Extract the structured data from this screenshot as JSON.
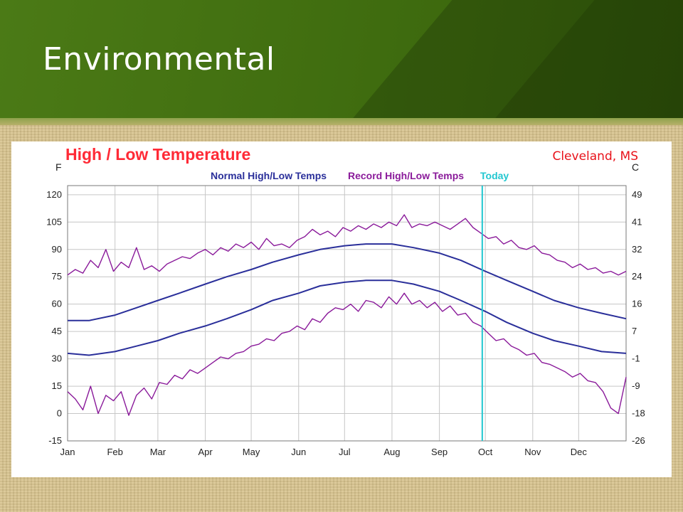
{
  "slide": {
    "title": "Environmental",
    "location_label": "Cleveland, MS"
  },
  "colors": {
    "chart_title": "#ff2a36",
    "normal": "#2a2f9a",
    "record": "#8a1a9a",
    "today": "#22c7d0",
    "grid": "#c6c6c6"
  },
  "chart_data": {
    "type": "line",
    "title": "High / Low Temperature",
    "left_unit": "F",
    "right_unit": "C",
    "legend": {
      "normal": "Normal High/Low Temps",
      "record": "Record High/Low Temps",
      "today": "Today"
    },
    "x_ticks": [
      "Jan",
      "Feb",
      "Mar",
      "Apr",
      "May",
      "Jun",
      "Jul",
      "Aug",
      "Sep",
      "Oct",
      "Nov",
      "Dec"
    ],
    "x_tick_days": [
      1,
      32,
      60,
      91,
      121,
      152,
      182,
      213,
      244,
      274,
      305,
      335
    ],
    "xlim": [
      1,
      366
    ],
    "ylim": [
      -15,
      125
    ],
    "y_ticks": [
      -15,
      0,
      15,
      30,
      45,
      60,
      75,
      90,
      105,
      120
    ],
    "y_ticks_c": [
      "-26",
      "-18",
      "-9",
      "-1",
      "7",
      "16",
      "24",
      "32",
      "41",
      "49"
    ],
    "today_day": 272,
    "series": [
      {
        "name": "Normal High/Low Temps",
        "role": "normal_high",
        "x": [
          1,
          15,
          32,
          46,
          60,
          74,
          91,
          105,
          121,
          135,
          152,
          166,
          182,
          196,
          213,
          227,
          244,
          258,
          274,
          288,
          305,
          319,
          335,
          350,
          366
        ],
        "values": [
          51,
          51,
          54,
          58,
          62,
          66,
          71,
          75,
          79,
          83,
          87,
          90,
          92,
          93,
          93,
          91,
          88,
          84,
          78,
          73,
          67,
          62,
          58,
          55,
          52
        ]
      },
      {
        "name": "Normal High/Low Temps",
        "role": "normal_low",
        "x": [
          1,
          15,
          32,
          46,
          60,
          74,
          91,
          105,
          121,
          135,
          152,
          166,
          182,
          196,
          213,
          227,
          244,
          258,
          274,
          288,
          305,
          319,
          335,
          350,
          366
        ],
        "values": [
          33,
          32,
          34,
          37,
          40,
          44,
          48,
          52,
          57,
          62,
          66,
          70,
          72,
          73,
          73,
          71,
          67,
          62,
          56,
          50,
          44,
          40,
          37,
          34,
          33
        ]
      },
      {
        "name": "Record High/Low Temps",
        "role": "record_high",
        "x": [
          1,
          6,
          11,
          16,
          21,
          26,
          31,
          36,
          41,
          46,
          51,
          56,
          61,
          66,
          71,
          76,
          81,
          86,
          91,
          96,
          101,
          106,
          111,
          116,
          121,
          126,
          131,
          136,
          141,
          146,
          151,
          156,
          161,
          166,
          171,
          176,
          181,
          186,
          191,
          196,
          201,
          206,
          211,
          216,
          221,
          226,
          231,
          236,
          241,
          246,
          251,
          256,
          261,
          266,
          271,
          276,
          281,
          286,
          291,
          296,
          301,
          306,
          311,
          316,
          321,
          326,
          331,
          336,
          341,
          346,
          351,
          356,
          361,
          366
        ],
        "values": [
          76,
          79,
          77,
          84,
          80,
          90,
          78,
          83,
          80,
          91,
          79,
          81,
          78,
          82,
          84,
          86,
          85,
          88,
          90,
          87,
          91,
          89,
          93,
          91,
          94,
          90,
          96,
          92,
          93,
          91,
          95,
          97,
          101,
          98,
          100,
          97,
          102,
          100,
          103,
          101,
          104,
          102,
          105,
          103,
          109,
          102,
          104,
          103,
          105,
          103,
          101,
          104,
          107,
          102,
          99,
          96,
          97,
          93,
          95,
          91,
          90,
          92,
          88,
          87,
          84,
          83,
          80,
          82,
          79,
          80,
          77,
          78,
          76,
          78
        ]
      },
      {
        "name": "Record High/Low Temps",
        "role": "record_low",
        "x": [
          1,
          6,
          11,
          16,
          21,
          26,
          31,
          36,
          41,
          46,
          51,
          56,
          61,
          66,
          71,
          76,
          81,
          86,
          91,
          96,
          101,
          106,
          111,
          116,
          121,
          126,
          131,
          136,
          141,
          146,
          151,
          156,
          161,
          166,
          171,
          176,
          181,
          186,
          191,
          196,
          201,
          206,
          211,
          216,
          221,
          226,
          231,
          236,
          241,
          246,
          251,
          256,
          261,
          266,
          271,
          276,
          281,
          286,
          291,
          296,
          301,
          306,
          311,
          316,
          321,
          326,
          331,
          336,
          341,
          346,
          351,
          356,
          361,
          366
        ],
        "values": [
          12,
          8,
          2,
          15,
          0,
          10,
          7,
          12,
          -1,
          10,
          14,
          8,
          17,
          16,
          21,
          19,
          24,
          22,
          25,
          28,
          31,
          30,
          33,
          34,
          37,
          38,
          41,
          40,
          44,
          45,
          48,
          46,
          52,
          50,
          55,
          58,
          57,
          60,
          56,
          62,
          61,
          58,
          64,
          60,
          66,
          60,
          62,
          58,
          61,
          56,
          59,
          54,
          55,
          50,
          48,
          44,
          40,
          41,
          37,
          35,
          32,
          33,
          28,
          27,
          25,
          23,
          20,
          22,
          18,
          17,
          12,
          3,
          0,
          20
        ]
      }
    ]
  }
}
